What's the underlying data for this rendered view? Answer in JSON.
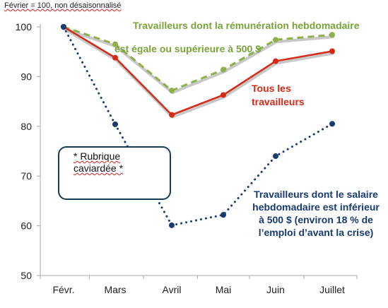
{
  "note": "Février = 100, non désaisonnalisé",
  "annotations": {
    "green_line1": "Travailleurs dont la rémunération hebdomadaire",
    "green_line2": "est égale ou supérieure à 500 $",
    "red": "Tous les travailleurs",
    "blue": "Travailleurs dont le salaire hebdomadaire est inférieur à 500 $ (environ 18 % de l’emploi d’avant la crise)",
    "redacted": "* Rubrique\ncaviardée *"
  },
  "colors": {
    "green": "#8db04a",
    "red": "#d42a17",
    "blue": "#173b70",
    "axis": "#aaaaaa"
  },
  "chart_data": {
    "type": "line",
    "categories": [
      "Févr.",
      "Mars",
      "Avril",
      "Mai",
      "Juin",
      "Juillet"
    ],
    "ylim": [
      50,
      100
    ],
    "yticks": [
      "50",
      "60",
      "70",
      "80",
      "90",
      "100"
    ],
    "series": [
      {
        "key": "high",
        "values": [
          100,
          96.5,
          87.2,
          91.4,
          97.4,
          98.4
        ],
        "color": "#8db04a",
        "style": "dashed"
      },
      {
        "key": "all",
        "values": [
          100,
          93.8,
          82.3,
          86.3,
          93.1,
          95.1
        ],
        "color": "#d42a17",
        "style": "solid"
      },
      {
        "key": "low",
        "values": [
          100,
          80.4,
          60.1,
          62.2,
          74.0,
          80.5
        ],
        "color": "#173b70",
        "style": "dotted"
      }
    ]
  }
}
